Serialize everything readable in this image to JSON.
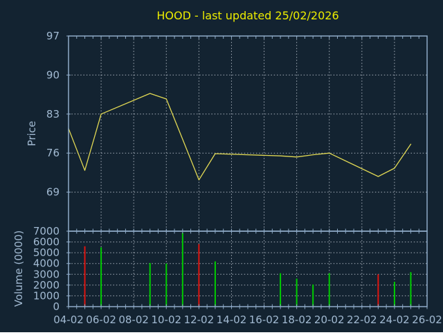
{
  "title": "HOOD - last updated 25/02/2026",
  "colors": {
    "background": "#132331",
    "frame": "#8fabc8",
    "grid": "#b6bfc9",
    "tick_label": "#a2bad2",
    "axis_title": "#a2bad2",
    "title": "#ededed00",
    "title_text": "#ecec00",
    "price_line": "#e2d954",
    "volume_up": "#00cc00",
    "volume_down": "#dd1510"
  },
  "chart_data": [
    {
      "type": "line",
      "title": "HOOD - last updated 25/02/2026",
      "ylabel": "Price",
      "xlabel": "",
      "ylim": [
        62,
        97
      ],
      "yticks": [
        69,
        76,
        83,
        90,
        97
      ],
      "xlim_days": [
        4,
        26
      ],
      "xtick_labels": [
        "04-02",
        "06-02",
        "08-02",
        "10-02",
        "12-02",
        "14-02",
        "16-02",
        "18-02",
        "20-02",
        "22-02",
        "24-02",
        "26-02"
      ],
      "grid": "dotted",
      "legend": "none",
      "series": [
        {
          "name": "price",
          "dates": [
            "04-02",
            "05-02",
            "06-02",
            "09-02",
            "10-02",
            "11-02",
            "12-02",
            "13-02",
            "17-02",
            "18-02",
            "19-02",
            "20-02",
            "23-02",
            "24-02",
            "25-02"
          ],
          "x_day": [
            4,
            5,
            6,
            9,
            10,
            11,
            12,
            13,
            17,
            18,
            19,
            20,
            23,
            24,
            25
          ],
          "values": [
            80.4,
            72.9,
            83.0,
            86.7,
            85.7,
            78.5,
            71.2,
            75.9,
            75.5,
            75.3,
            75.7,
            76.0,
            71.8,
            73.3,
            77.6
          ]
        }
      ]
    },
    {
      "type": "bar",
      "ylabel": "Volume (0000)",
      "xlabel": "",
      "ylim": [
        0,
        7000
      ],
      "yticks": [
        0,
        1000,
        2000,
        3000,
        4000,
        5000,
        6000,
        7000
      ],
      "grid": "dotted",
      "legend": "none",
      "dates": [
        "05-02",
        "06-02",
        "09-02",
        "10-02",
        "11-02",
        "12-02",
        "13-02",
        "17-02",
        "18-02",
        "19-02",
        "20-02",
        "23-02",
        "24-02",
        "25-02"
      ],
      "x_day": [
        5,
        6,
        9,
        10,
        11,
        12,
        13,
        17,
        18,
        19,
        20,
        23,
        24,
        25
      ],
      "values": [
        5600,
        5500,
        4050,
        4000,
        6850,
        5800,
        4200,
        3100,
        2600,
        2050,
        3100,
        3000,
        2300,
        3200
      ],
      "direction": [
        "down",
        "up",
        "up",
        "up",
        "up",
        "down",
        "up",
        "up",
        "up",
        "up",
        "up",
        "down",
        "up",
        "up"
      ]
    }
  ]
}
